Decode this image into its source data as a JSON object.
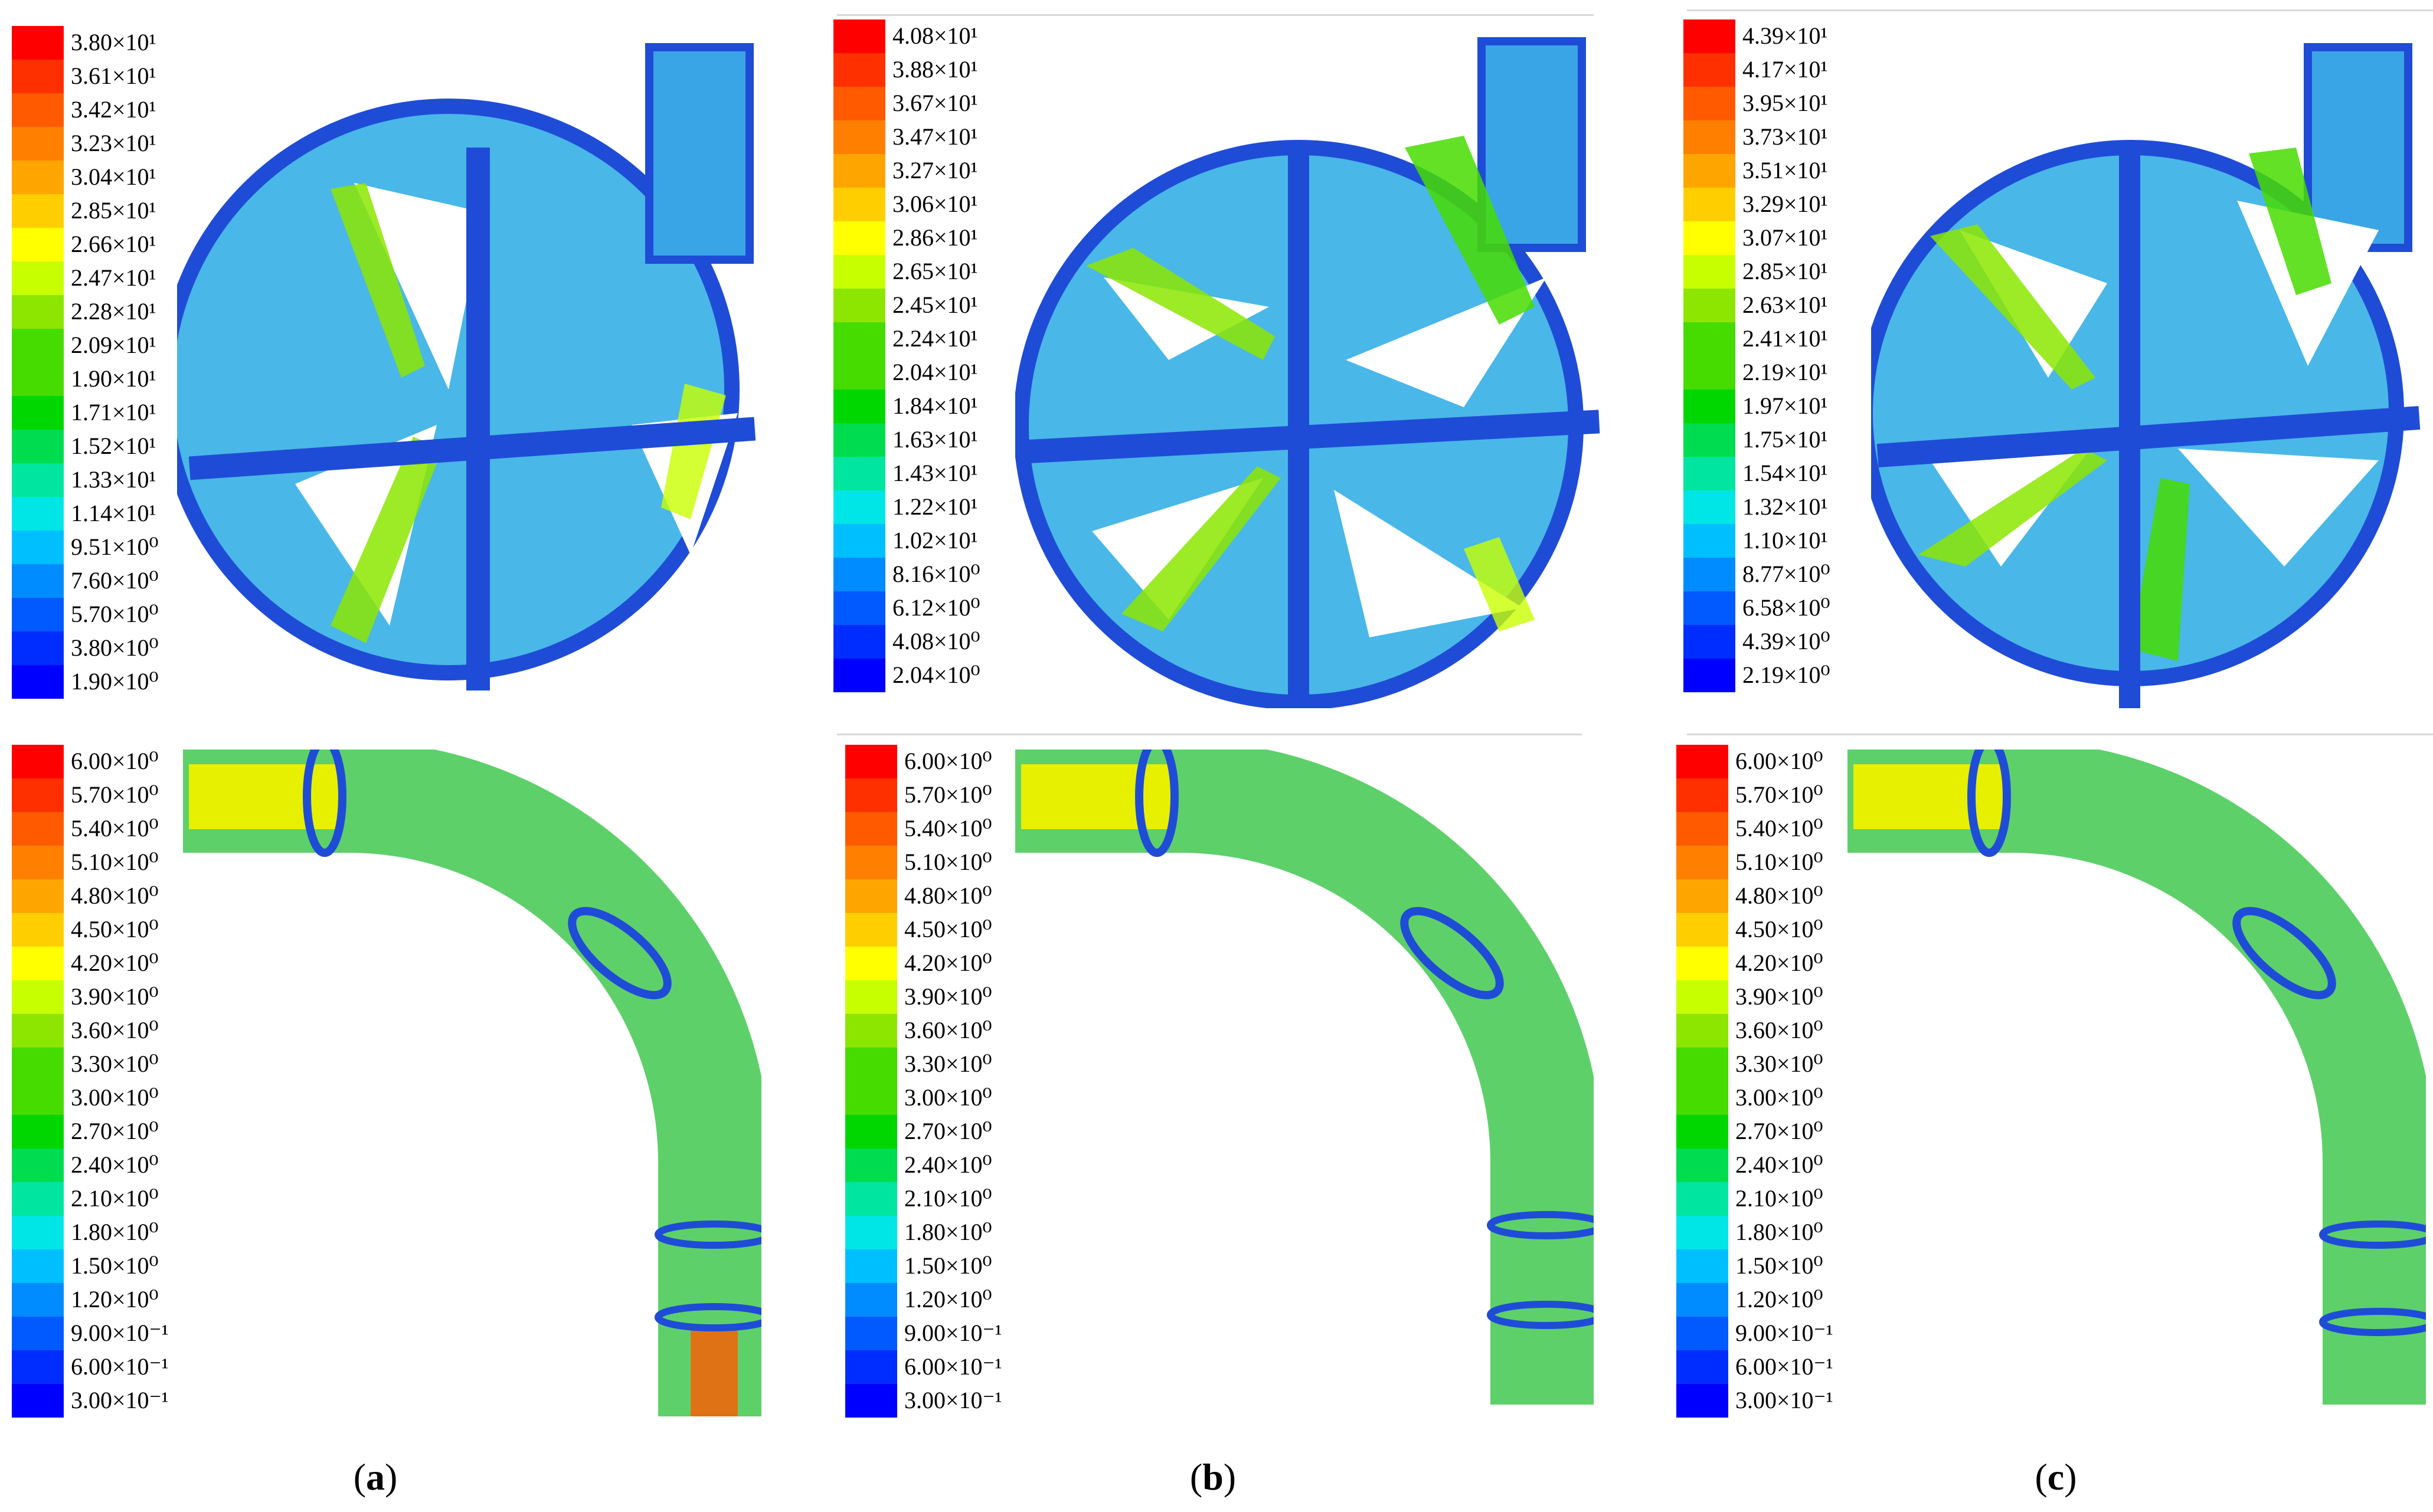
{
  "colormap": [
    "#ff0000",
    "#ff3000",
    "#ff5a00",
    "#ff8000",
    "#ffa500",
    "#ffce00",
    "#ffff00",
    "#c8ff00",
    "#8ce600",
    "#46dc00",
    "#00d700",
    "#00dc50",
    "#00e6a0",
    "#00e6e6",
    "#00bfff",
    "#008cff",
    "#005aff",
    "#002dff",
    "#0000ff"
  ],
  "panels": [
    {
      "caption_open": "(",
      "caption_letter": "a",
      "caption_close": ")",
      "pump_legend": [
        "3.80×10¹",
        "3.61×10¹",
        "3.42×10¹",
        "3.23×10¹",
        "3.04×10¹",
        "2.85×10¹",
        "2.66×10¹",
        "2.47×10¹",
        "2.28×10¹",
        "2.09×10¹",
        "1.90×10¹",
        "1.71×10¹",
        "1.52×10¹",
        "1.33×10¹",
        "1.14×10¹",
        "9.51×10⁰",
        "7.60×10⁰",
        "5.70×10⁰",
        "3.80×10⁰",
        "1.90×10⁰"
      ],
      "pipe_legend": [
        "6.00×10⁰",
        "5.70×10⁰",
        "5.40×10⁰",
        "5.10×10⁰",
        "4.80×10⁰",
        "4.50×10⁰",
        "4.20×10⁰",
        "3.90×10⁰",
        "3.60×10⁰",
        "3.30×10⁰",
        "3.00×10⁰",
        "2.70×10⁰",
        "2.40×10⁰",
        "2.10×10⁰",
        "1.80×10⁰",
        "1.50×10⁰",
        "1.20×10⁰",
        "9.00×10⁻¹",
        "6.00×10⁻¹",
        "3.00×10⁻¹"
      ]
    },
    {
      "caption_open": "(",
      "caption_letter": "b",
      "caption_close": ")",
      "pump_legend": [
        "4.08×10¹",
        "3.88×10¹",
        "3.67×10¹",
        "3.47×10¹",
        "3.27×10¹",
        "3.06×10¹",
        "2.86×10¹",
        "2.65×10¹",
        "2.45×10¹",
        "2.24×10¹",
        "2.04×10¹",
        "1.84×10¹",
        "1.63×10¹",
        "1.43×10¹",
        "1.22×10¹",
        "1.02×10¹",
        "8.16×10⁰",
        "6.12×10⁰",
        "4.08×10⁰",
        "2.04×10⁰"
      ],
      "pipe_legend": [
        "6.00×10⁰",
        "5.70×10⁰",
        "5.40×10⁰",
        "5.10×10⁰",
        "4.80×10⁰",
        "4.50×10⁰",
        "4.20×10⁰",
        "3.90×10⁰",
        "3.60×10⁰",
        "3.30×10⁰",
        "3.00×10⁰",
        "2.70×10⁰",
        "2.40×10⁰",
        "2.10×10⁰",
        "1.80×10⁰",
        "1.50×10⁰",
        "1.20×10⁰",
        "9.00×10⁻¹",
        "6.00×10⁻¹",
        "3.00×10⁻¹"
      ]
    },
    {
      "caption_open": "(",
      "caption_letter": "c",
      "caption_close": ")",
      "pump_legend": [
        "4.39×10¹",
        "4.17×10¹",
        "3.95×10¹",
        "3.73×10¹",
        "3.51×10¹",
        "3.29×10¹",
        "3.07×10¹",
        "2.85×10¹",
        "2.63×10¹",
        "2.41×10¹",
        "2.19×10¹",
        "1.97×10¹",
        "1.75×10¹",
        "1.54×10¹",
        "1.32×10¹",
        "1.10×10¹",
        "8.77×10⁰",
        "6.58×10⁰",
        "4.39×10⁰",
        "2.19×10⁰"
      ],
      "pipe_legend": [
        "6.00×10⁰",
        "5.70×10⁰",
        "5.40×10⁰",
        "5.10×10⁰",
        "4.80×10⁰",
        "4.50×10⁰",
        "4.20×10⁰",
        "3.90×10⁰",
        "3.60×10⁰",
        "3.30×10⁰",
        "3.00×10⁰",
        "2.70×10⁰",
        "2.40×10⁰",
        "2.10×10⁰",
        "1.80×10⁰",
        "1.50×10⁰",
        "1.20×10⁰",
        "9.00×10⁻¹",
        "6.00×10⁻¹",
        "3.00×10⁻¹"
      ]
    }
  ]
}
